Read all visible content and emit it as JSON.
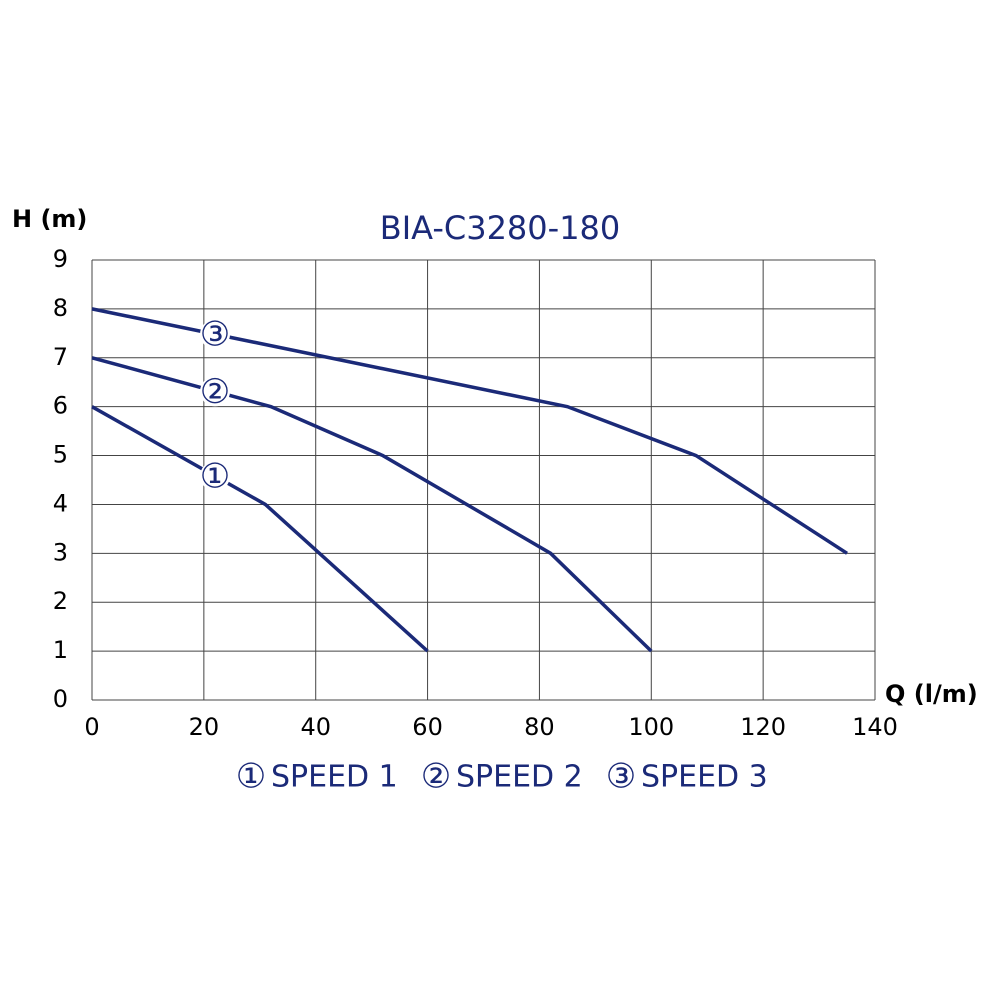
{
  "chart_data": {
    "type": "line",
    "title": "BIA-C3280-180",
    "y_label": "H (m)",
    "x_label": "Q (l/m)",
    "xlim": [
      0,
      140
    ],
    "xticks": [
      0,
      20,
      40,
      60,
      80,
      100,
      120,
      140
    ],
    "ylim": [
      0,
      9
    ],
    "yticks": [
      0,
      1,
      2,
      3,
      4,
      5,
      6,
      7,
      8,
      9
    ],
    "grid": true,
    "series": [
      {
        "name": "SPEED 1",
        "marker": "①",
        "color": "#1b2a78",
        "x": [
          0,
          31,
          60
        ],
        "values": [
          6,
          4,
          1
        ]
      },
      {
        "name": "SPEED 2",
        "marker": "②",
        "color": "#1b2a78",
        "x": [
          0,
          32,
          52,
          82,
          100
        ],
        "values": [
          7,
          6,
          5,
          3,
          1
        ]
      },
      {
        "name": "SPEED 3",
        "marker": "③",
        "color": "#1b2a78",
        "x": [
          0,
          85,
          108,
          135
        ],
        "values": [
          8,
          6,
          5,
          3
        ]
      }
    ]
  }
}
